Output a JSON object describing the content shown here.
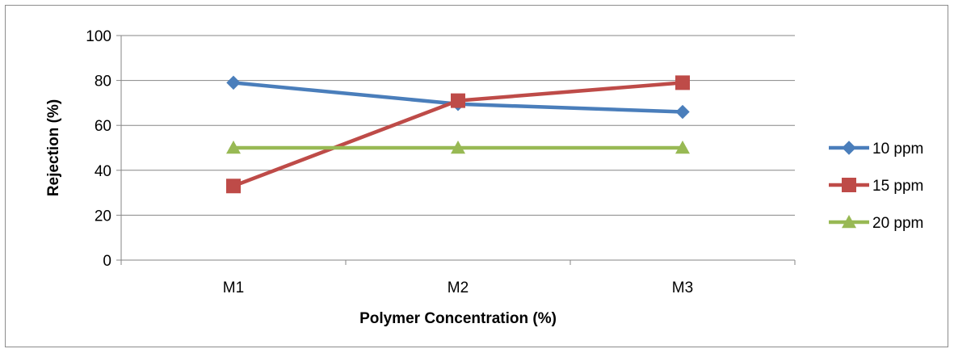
{
  "chart_data": {
    "type": "line",
    "categories": [
      "M1",
      "M2",
      "M3"
    ],
    "series": [
      {
        "name": "10 ppm",
        "values": [
          79,
          69.5,
          66
        ],
        "color": "#4a7ebb",
        "marker": "diamond"
      },
      {
        "name": "15 ppm",
        "values": [
          33,
          71,
          79
        ],
        "color": "#be4b48",
        "marker": "square"
      },
      {
        "name": "20 ppm",
        "values": [
          50,
          50,
          50
        ],
        "color": "#98b954",
        "marker": "triangle"
      }
    ],
    "xlabel": "Polymer Concentration (%)",
    "ylabel": "Rejection (%)",
    "ylim": [
      0,
      100
    ],
    "yticks": [
      0,
      20,
      40,
      60,
      80,
      100
    ],
    "grid": true,
    "legend_position": "right"
  }
}
